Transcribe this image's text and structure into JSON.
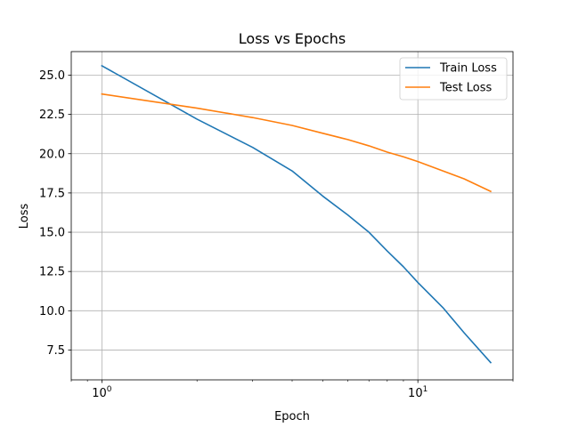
{
  "chart_data": {
    "type": "line",
    "title": "Loss vs Epochs",
    "xlabel": "Epoch",
    "ylabel": "Loss",
    "x_scale": "log",
    "xlim": [
      0.8,
      20
    ],
    "ylim": [
      5.6,
      26.5
    ],
    "x": [
      1,
      2,
      3,
      4,
      5,
      6,
      7,
      8,
      9,
      10,
      12,
      14,
      17
    ],
    "series": [
      {
        "name": "Train Loss",
        "color": "#1f77b4",
        "values": [
          25.6,
          22.2,
          20.4,
          18.9,
          17.3,
          16.1,
          15.0,
          13.8,
          12.8,
          11.8,
          10.2,
          8.6,
          6.7
        ]
      },
      {
        "name": "Test Loss",
        "color": "#ff7f0e",
        "values": [
          23.8,
          22.9,
          22.3,
          21.8,
          21.3,
          20.9,
          20.5,
          20.1,
          19.8,
          19.5,
          18.9,
          18.4,
          17.6
        ]
      }
    ],
    "x_ticks": [
      {
        "value": 1,
        "base": "10",
        "exp": "0"
      },
      {
        "value": 10,
        "base": "10",
        "exp": "1"
      }
    ],
    "y_ticks": [
      {
        "value": 7.5,
        "label": "7.5"
      },
      {
        "value": 10.0,
        "label": "10.0"
      },
      {
        "value": 12.5,
        "label": "12.5"
      },
      {
        "value": 15.0,
        "label": "15.0"
      },
      {
        "value": 17.5,
        "label": "17.5"
      },
      {
        "value": 20.0,
        "label": "20.0"
      },
      {
        "value": 22.5,
        "label": "22.5"
      },
      {
        "value": 25.0,
        "label": "25.0"
      }
    ],
    "grid": true,
    "legend_position": "upper-right"
  }
}
